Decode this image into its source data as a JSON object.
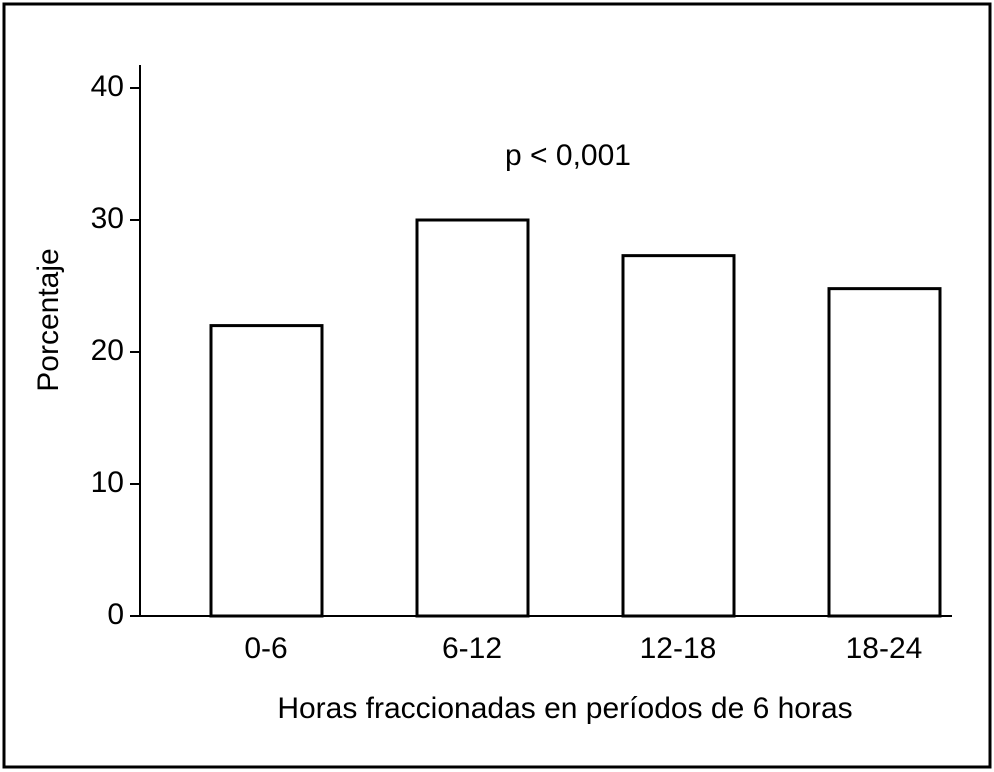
{
  "chart_data": {
    "type": "bar",
    "title": "p < 0,001",
    "x_label": "Horas fraccionadas en períodos de 6 horas",
    "y_label": "Porcentaje",
    "categories": [
      "0-6",
      "6-12",
      "12-18",
      "18-24"
    ],
    "values": [
      22,
      30,
      27.3,
      24.8
    ],
    "color": "#ffffff",
    "ylim": [
      0,
      40
    ],
    "yticks": [
      0,
      10,
      20,
      30,
      40
    ],
    "grid": false
  }
}
